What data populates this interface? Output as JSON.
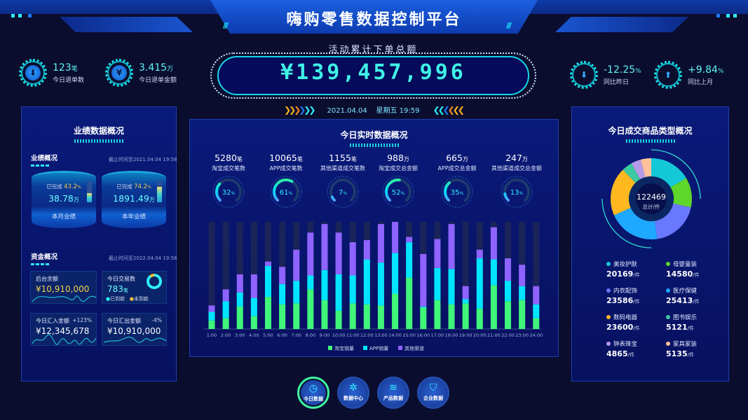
{
  "header": {
    "title": "嗨购零售数据控制平台"
  },
  "stats_left": [
    {
      "icon": "refund-box-icon",
      "value": "123",
      "unit": "笔",
      "label": "今日退单数"
    },
    {
      "icon": "yuan-icon",
      "value": "3.415",
      "unit": "万",
      "label": "今日退单金额"
    }
  ],
  "stats_right": [
    {
      "icon": "arrow-down-icon",
      "value": "-12.25",
      "unit": "%",
      "label": "同比昨日"
    },
    {
      "icon": "arrow-up-icon",
      "value": "+9.84",
      "unit": "%",
      "label": "同比上月"
    }
  ],
  "total": {
    "label": "活动累计下单总额",
    "value": "¥139,457,996",
    "date": "2021.04.04",
    "weekday_time": "星期五 19:59"
  },
  "left_panel": {
    "title": "业绩数据概况",
    "performance": {
      "title": "业绩概况",
      "as_of": "截止时间至2021.04.04 19:58",
      "items": [
        {
          "done_label": "已完成",
          "pct": "43.2",
          "pct_unit": "%",
          "amount": "38.78",
          "unit": "万",
          "name": "本月业绩",
          "progress": 43.2
        },
        {
          "done_label": "已完成",
          "pct": "74.2",
          "pct_unit": "%",
          "amount": "1891.49",
          "unit": "万",
          "name": "本年业绩",
          "progress": 74.2
        }
      ]
    },
    "funds": {
      "title": "资金概况",
      "as_of": "截止时间至2022.04.04 19:58",
      "cards": [
        {
          "title": "后台余额",
          "value": "¥10,910,000",
          "color": "#f2d24a"
        },
        {
          "title": "今日交易数",
          "value": "783",
          "unit": "笔",
          "legend": [
            "已到款",
            "未到款"
          ],
          "received_fraction": 0.9
        },
        {
          "title": "今日汇入金额",
          "value": "¥12,345,678",
          "change": "+123%"
        },
        {
          "title": "今日汇出金额",
          "value": "¥10,910,000",
          "change": "-4%"
        }
      ]
    }
  },
  "center_panel": {
    "title": "今日实时数据概况",
    "gauges": [
      {
        "value": "5280",
        "unit": "笔",
        "label": "淘宝成交笔数",
        "pct": 32
      },
      {
        "value": "10065",
        "unit": "笔",
        "label": "APP成交笔数",
        "pct": 61
      },
      {
        "value": "1155",
        "unit": "笔",
        "label": "其他渠道成交笔数",
        "pct": 7
      },
      {
        "value": "988",
        "unit": "万",
        "label": "淘宝成交总金额",
        "pct": 52
      },
      {
        "value": "665",
        "unit": "万",
        "label": "APP成交总金额",
        "pct": 35
      },
      {
        "value": "247",
        "unit": "万",
        "label": "其他渠道成交总金额",
        "pct": 13
      }
    ],
    "pct_unit": "%"
  },
  "chart_data": {
    "type": "bar",
    "stacked": true,
    "categories": [
      "1:00",
      "2:00",
      "3:00",
      "4:00",
      "5:00",
      "6:00",
      "7:00",
      "8:00",
      "9:00",
      "10:00",
      "11:00",
      "12:00",
      "13:00",
      "14:00",
      "15:00",
      "16:00",
      "17:00",
      "18:00",
      "19:00",
      "20:00",
      "21:00",
      "22:00",
      "23:00",
      "24:00"
    ],
    "series": [
      {
        "name": "淘宝销量",
        "color": "#3ff57a",
        "values": [
          8,
          10,
          21,
          12,
          30,
          23,
          24,
          37,
          27,
          17,
          24,
          23,
          22,
          33,
          48,
          20,
          27,
          23,
          24,
          19,
          41,
          26,
          27,
          10
        ]
      },
      {
        "name": "APP销量",
        "color": "#00e5ff",
        "values": [
          8,
          16,
          13,
          17,
          29,
          19,
          21,
          13,
          28,
          34,
          26,
          42,
          40,
          38,
          33,
          1,
          30,
          33,
          4,
          47,
          24,
          19,
          13,
          13
        ]
      },
      {
        "name": "其他渠道",
        "color": "#8f63ff",
        "values": [
          6,
          11,
          17,
          22,
          4,
          16,
          29,
          40,
          43,
          39,
          31,
          18,
          36,
          29,
          5,
          49,
          27,
          42,
          12,
          8,
          30,
          21,
          20,
          17
        ]
      }
    ],
    "ylim": [
      0,
      100
    ],
    "legend": "bottom",
    "grid": false
  },
  "right_panel": {
    "title": "今日成交商品类型概况",
    "total": "122469",
    "total_label": "总计/件",
    "unit": "/件",
    "categories": [
      {
        "name": "美妆护肤",
        "value": 20169,
        "color": "#14c8d8"
      },
      {
        "name": "母婴童装",
        "value": 14580,
        "color": "#5fd62a"
      },
      {
        "name": "内衣配饰",
        "value": 23586,
        "color": "#6a78ff"
      },
      {
        "name": "医疗保健",
        "value": 25413,
        "color": "#1ea8ff"
      },
      {
        "name": "数码电器",
        "value": 23600,
        "color": "#ffb81e"
      },
      {
        "name": "图书娱乐",
        "value": 5121,
        "color": "#3cc8a0"
      },
      {
        "name": "钟表珠宝",
        "value": 4865,
        "color": "#b69ae8"
      },
      {
        "name": "家具家装",
        "value": 5135,
        "color": "#ffc29a"
      }
    ]
  },
  "bottom_nav": [
    {
      "label": "今日数据",
      "icon": "clock-icon",
      "active": true
    },
    {
      "label": "数据中心",
      "icon": "network-icon"
    },
    {
      "label": "产品数据",
      "icon": "layers-icon"
    },
    {
      "label": "企业数据",
      "icon": "shield-icon"
    }
  ]
}
